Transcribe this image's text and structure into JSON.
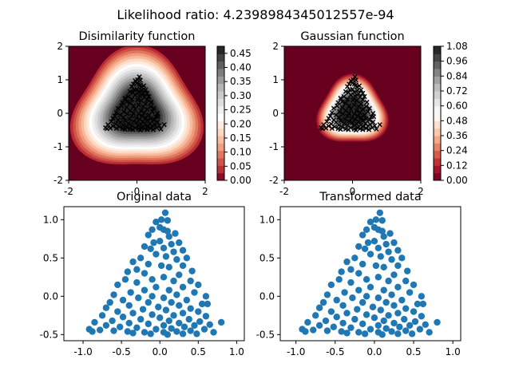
{
  "suptitle": "Likelihood ratio: 4.2398984345012557e-94",
  "colors": {
    "scatter": "#1f77b4",
    "contour_low": "#67001f",
    "contour_high": "#fbf7f4",
    "marker": "#000000"
  },
  "chart_data": [
    {
      "type": "heatmap",
      "title": "Disimilarity function",
      "xlim": [
        -2,
        2
      ],
      "ylim": [
        -2,
        2
      ],
      "xticks": [
        -2,
        0,
        2
      ],
      "yticks": [
        -2,
        -1,
        0,
        1,
        2
      ],
      "colormap": "RdGy",
      "colorbar_ticks": [
        "0.00",
        "0.05",
        "0.10",
        "0.15",
        "0.20",
        "0.25",
        "0.30",
        "0.35",
        "0.40",
        "0.45"
      ],
      "levels": [
        0.0,
        0.05,
        0.075,
        0.1,
        0.125,
        0.15,
        0.175,
        0.2,
        0.225,
        0.25,
        0.275,
        0.3,
        0.325,
        0.35,
        0.375,
        0.4,
        0.425,
        0.45,
        0.475
      ],
      "overlay": "triangle point cloud, black x markers",
      "grid": false
    },
    {
      "type": "heatmap",
      "title": "Gaussian function",
      "xlim": [
        -2,
        2
      ],
      "ylim": [
        -2,
        2
      ],
      "xticks": [
        -2,
        0,
        2
      ],
      "yticks": [
        -2,
        -1,
        0,
        1,
        2
      ],
      "colormap": "RdGy",
      "colorbar_ticks": [
        "0.00",
        "0.12",
        "0.24",
        "0.36",
        "0.48",
        "0.60",
        "0.72",
        "0.84",
        "0.96",
        "1.08"
      ],
      "levels": [
        0.0,
        0.06,
        0.12,
        0.18,
        0.24,
        0.3,
        0.36,
        0.42,
        0.48,
        0.54,
        0.6,
        0.66,
        0.72,
        0.78,
        0.84,
        0.9,
        0.96,
        1.02,
        1.08
      ],
      "overlay": "triangle point cloud, black x markers",
      "grid": false
    },
    {
      "type": "scatter",
      "title": "Original data",
      "xlim": [
        -1.25,
        1.1
      ],
      "ylim": [
        -0.58,
        1.17
      ],
      "xticks": [
        "-1.0",
        "-0.5",
        "0.0",
        "0.5",
        "1.0"
      ],
      "yticks": [
        "-0.5",
        "0.0",
        "0.5",
        "1.0"
      ],
      "points": [
        [
          0.07,
          1.09
        ],
        [
          0.02,
          1.0
        ],
        [
          -0.05,
          0.97
        ],
        [
          0.1,
          0.99
        ],
        [
          0.0,
          0.9
        ],
        [
          0.05,
          0.87
        ],
        [
          0.1,
          0.85
        ],
        [
          -0.1,
          0.87
        ],
        [
          0.2,
          0.82
        ],
        [
          0.12,
          0.78
        ],
        [
          -0.15,
          0.8
        ],
        [
          0.0,
          0.72
        ],
        [
          -0.08,
          0.7
        ],
        [
          0.25,
          0.7
        ],
        [
          0.15,
          0.68
        ],
        [
          -0.2,
          0.65
        ],
        [
          0.05,
          0.63
        ],
        [
          -0.12,
          0.62
        ],
        [
          0.3,
          0.6
        ],
        [
          0.18,
          0.58
        ],
        [
          -0.05,
          0.55
        ],
        [
          0.08,
          0.52
        ],
        [
          -0.25,
          0.5
        ],
        [
          0.35,
          0.5
        ],
        [
          0.22,
          0.48
        ],
        [
          -0.35,
          0.45
        ],
        [
          -0.15,
          0.42
        ],
        [
          0.02,
          0.4
        ],
        [
          0.12,
          0.38
        ],
        [
          0.3,
          0.4
        ],
        [
          -0.3,
          0.35
        ],
        [
          -0.42,
          0.32
        ],
        [
          0.42,
          0.33
        ],
        [
          -0.2,
          0.3
        ],
        [
          0.25,
          0.28
        ],
        [
          0.05,
          0.25
        ],
        [
          -0.1,
          0.22
        ],
        [
          0.18,
          0.2
        ],
        [
          -0.45,
          0.22
        ],
        [
          0.4,
          0.2
        ],
        [
          -0.3,
          0.18
        ],
        [
          -0.55,
          0.15
        ],
        [
          0.5,
          0.15
        ],
        [
          0.3,
          0.12
        ],
        [
          -0.05,
          0.12
        ],
        [
          0.12,
          0.08
        ],
        [
          -0.2,
          0.08
        ],
        [
          -0.38,
          0.05
        ],
        [
          0.45,
          0.05
        ],
        [
          0.22,
          0.02
        ],
        [
          -0.6,
          0.02
        ],
        [
          -0.1,
          0.0
        ],
        [
          0.6,
          0.0
        ],
        [
          0.05,
          -0.02
        ],
        [
          -0.28,
          -0.02
        ],
        [
          0.35,
          -0.05
        ],
        [
          -0.48,
          -0.05
        ],
        [
          0.15,
          -0.08
        ],
        [
          -0.15,
          -0.08
        ],
        [
          -0.65,
          -0.08
        ],
        [
          0.55,
          -0.1
        ],
        [
          0.62,
          -0.1
        ],
        [
          -0.4,
          -0.12
        ],
        [
          0.25,
          -0.12
        ],
        [
          -0.02,
          -0.14
        ],
        [
          -0.7,
          -0.15
        ],
        [
          0.4,
          -0.16
        ],
        [
          -0.22,
          -0.17
        ],
        [
          0.08,
          -0.18
        ],
        [
          -0.55,
          -0.2
        ],
        [
          0.5,
          -0.2
        ],
        [
          0.3,
          -0.22
        ],
        [
          -0.35,
          -0.22
        ],
        [
          -0.1,
          -0.24
        ],
        [
          0.18,
          -0.25
        ],
        [
          -0.75,
          -0.25
        ],
        [
          0.6,
          -0.26
        ],
        [
          -0.48,
          -0.27
        ],
        [
          0.0,
          -0.28
        ],
        [
          0.38,
          -0.3
        ],
        [
          -0.25,
          -0.3
        ],
        [
          -0.62,
          -0.32
        ],
        [
          0.12,
          -0.32
        ],
        [
          0.52,
          -0.33
        ],
        [
          -0.85,
          -0.34
        ],
        [
          -0.4,
          -0.35
        ],
        [
          0.25,
          -0.35
        ],
        [
          0.8,
          -0.34
        ],
        [
          -0.15,
          -0.36
        ],
        [
          0.65,
          -0.37
        ],
        [
          -0.7,
          -0.38
        ],
        [
          0.05,
          -0.38
        ],
        [
          0.45,
          -0.38
        ],
        [
          -0.52,
          -0.4
        ],
        [
          0.32,
          -0.4
        ],
        [
          -0.3,
          -0.41
        ],
        [
          -0.92,
          -0.43
        ],
        [
          0.15,
          -0.42
        ],
        [
          -0.05,
          -0.43
        ],
        [
          0.58,
          -0.43
        ],
        [
          -0.78,
          -0.44
        ],
        [
          -0.6,
          -0.45
        ],
        [
          0.4,
          -0.45
        ],
        [
          -0.42,
          -0.46
        ],
        [
          0.22,
          -0.46
        ],
        [
          -0.2,
          -0.47
        ],
        [
          -0.88,
          -0.46
        ],
        [
          0.05,
          -0.47
        ],
        [
          0.7,
          -0.47
        ],
        [
          -0.35,
          -0.48
        ],
        [
          0.3,
          -0.49
        ],
        [
          -0.12,
          -0.49
        ],
        [
          0.48,
          -0.49
        ],
        [
          0.1,
          -0.5
        ]
      ]
    },
    {
      "type": "scatter",
      "title": "Transformed data",
      "xlim": [
        -1.2,
        1.1
      ],
      "ylim": [
        -0.58,
        1.17
      ],
      "xticks": [
        "-1.0",
        "-0.5",
        "0.0",
        "0.5",
        "1.0"
      ],
      "yticks": [
        "-0.5",
        "0.0",
        "0.5",
        "1.0"
      ],
      "points": [
        [
          0.07,
          1.09
        ],
        [
          0.02,
          1.0
        ],
        [
          -0.05,
          0.97
        ],
        [
          0.1,
          0.99
        ],
        [
          0.0,
          0.9
        ],
        [
          0.05,
          0.87
        ],
        [
          0.1,
          0.85
        ],
        [
          -0.1,
          0.87
        ],
        [
          0.2,
          0.82
        ],
        [
          0.12,
          0.78
        ],
        [
          -0.15,
          0.8
        ],
        [
          0.0,
          0.72
        ],
        [
          -0.08,
          0.7
        ],
        [
          0.25,
          0.7
        ],
        [
          0.15,
          0.68
        ],
        [
          -0.2,
          0.65
        ],
        [
          0.05,
          0.63
        ],
        [
          -0.12,
          0.62
        ],
        [
          0.3,
          0.6
        ],
        [
          0.18,
          0.58
        ],
        [
          -0.05,
          0.55
        ],
        [
          0.08,
          0.52
        ],
        [
          -0.25,
          0.5
        ],
        [
          0.35,
          0.5
        ],
        [
          0.22,
          0.48
        ],
        [
          -0.35,
          0.45
        ],
        [
          -0.15,
          0.42
        ],
        [
          0.02,
          0.4
        ],
        [
          0.12,
          0.38
        ],
        [
          0.3,
          0.4
        ],
        [
          -0.3,
          0.35
        ],
        [
          -0.42,
          0.32
        ],
        [
          0.42,
          0.33
        ],
        [
          -0.2,
          0.3
        ],
        [
          0.25,
          0.28
        ],
        [
          0.05,
          0.25
        ],
        [
          -0.1,
          0.22
        ],
        [
          0.18,
          0.2
        ],
        [
          -0.45,
          0.22
        ],
        [
          0.4,
          0.2
        ],
        [
          -0.3,
          0.18
        ],
        [
          -0.55,
          0.15
        ],
        [
          0.5,
          0.15
        ],
        [
          0.3,
          0.12
        ],
        [
          -0.05,
          0.12
        ],
        [
          0.12,
          0.08
        ],
        [
          -0.2,
          0.08
        ],
        [
          -0.38,
          0.05
        ],
        [
          0.45,
          0.05
        ],
        [
          0.22,
          0.02
        ],
        [
          -0.6,
          0.02
        ],
        [
          -0.1,
          0.0
        ],
        [
          0.6,
          0.0
        ],
        [
          0.05,
          -0.02
        ],
        [
          -0.28,
          -0.02
        ],
        [
          0.35,
          -0.05
        ],
        [
          -0.48,
          -0.05
        ],
        [
          0.15,
          -0.08
        ],
        [
          -0.15,
          -0.08
        ],
        [
          -0.65,
          -0.08
        ],
        [
          0.55,
          -0.1
        ],
        [
          0.62,
          -0.1
        ],
        [
          -0.4,
          -0.12
        ],
        [
          0.25,
          -0.12
        ],
        [
          -0.02,
          -0.14
        ],
        [
          -0.7,
          -0.15
        ],
        [
          0.4,
          -0.16
        ],
        [
          -0.22,
          -0.17
        ],
        [
          0.08,
          -0.18
        ],
        [
          -0.55,
          -0.2
        ],
        [
          0.5,
          -0.2
        ],
        [
          0.3,
          -0.22
        ],
        [
          -0.35,
          -0.22
        ],
        [
          -0.1,
          -0.24
        ],
        [
          0.18,
          -0.25
        ],
        [
          -0.75,
          -0.25
        ],
        [
          0.6,
          -0.26
        ],
        [
          -0.48,
          -0.27
        ],
        [
          0.0,
          -0.28
        ],
        [
          0.38,
          -0.3
        ],
        [
          -0.25,
          -0.3
        ],
        [
          -0.62,
          -0.32
        ],
        [
          0.12,
          -0.32
        ],
        [
          0.52,
          -0.33
        ],
        [
          -0.85,
          -0.34
        ],
        [
          -0.4,
          -0.35
        ],
        [
          0.25,
          -0.35
        ],
        [
          0.8,
          -0.34
        ],
        [
          -0.15,
          -0.36
        ],
        [
          0.65,
          -0.37
        ],
        [
          -0.7,
          -0.38
        ],
        [
          0.05,
          -0.38
        ],
        [
          0.45,
          -0.38
        ],
        [
          -0.52,
          -0.4
        ],
        [
          0.32,
          -0.4
        ],
        [
          -0.3,
          -0.41
        ],
        [
          -0.92,
          -0.43
        ],
        [
          0.15,
          -0.42
        ],
        [
          -0.05,
          -0.43
        ],
        [
          0.58,
          -0.43
        ],
        [
          -0.78,
          -0.44
        ],
        [
          -0.6,
          -0.45
        ],
        [
          0.4,
          -0.45
        ],
        [
          -0.42,
          -0.46
        ],
        [
          0.22,
          -0.46
        ],
        [
          -0.2,
          -0.47
        ],
        [
          -0.88,
          -0.46
        ],
        [
          0.05,
          -0.47
        ],
        [
          0.7,
          -0.47
        ],
        [
          -0.35,
          -0.48
        ],
        [
          0.3,
          -0.49
        ],
        [
          -0.12,
          -0.49
        ],
        [
          0.48,
          -0.49
        ],
        [
          0.1,
          -0.5
        ]
      ]
    }
  ]
}
